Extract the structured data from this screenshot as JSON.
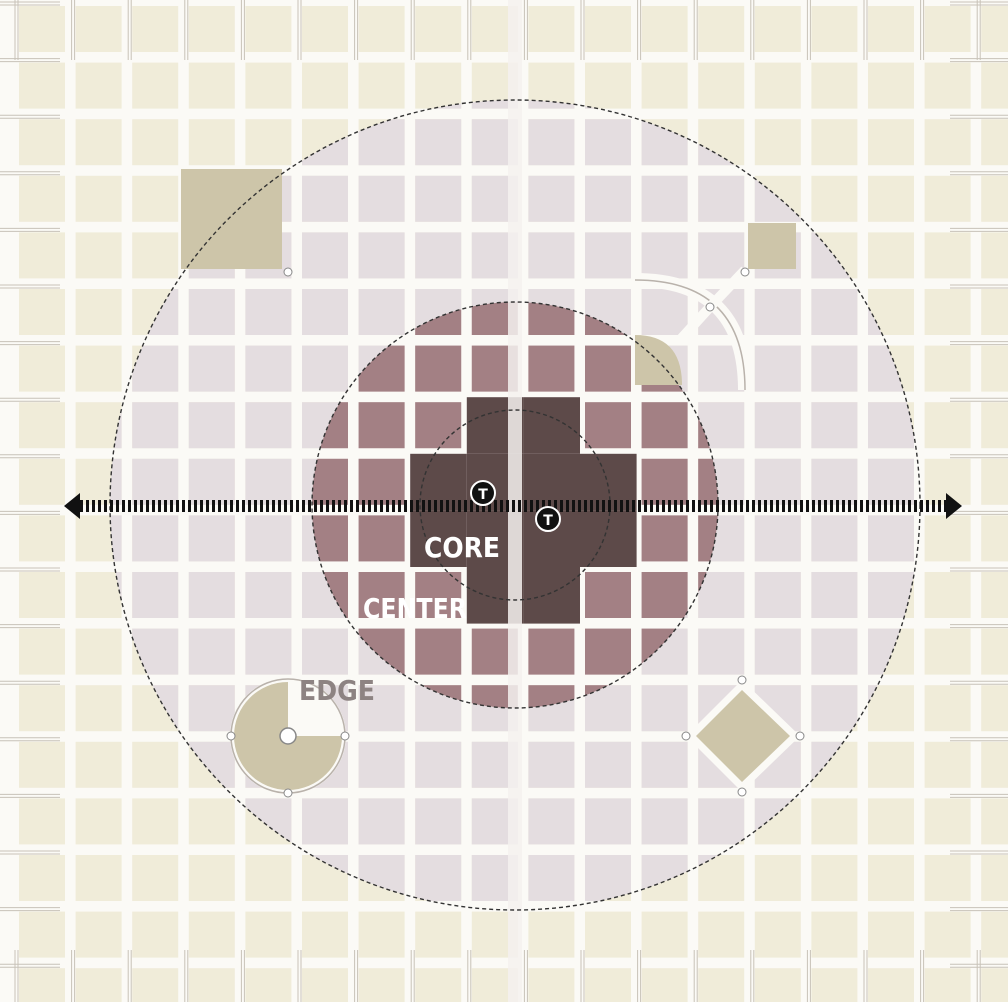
{
  "labels": {
    "core": "CORE",
    "center": "CENTER",
    "edge": "EDGE"
  },
  "transit_stop_letter": "T",
  "icons": {
    "transit_stop": "transit-stop-icon",
    "arrow_left": "arrow-left-icon",
    "arrow_right": "arrow-right-icon"
  },
  "colors": {
    "background_block": "#f0ecd9",
    "street": "#fbfaf6",
    "edge_zone": "#e4dde0",
    "center_zone": "#a38084",
    "core_zone": "#5d4a49",
    "open_space": "#cdc5a9",
    "dashed_ring": "#333333",
    "corridor": "#111111",
    "edge_label": "#8d8382",
    "light_label": "#ffffff"
  }
}
